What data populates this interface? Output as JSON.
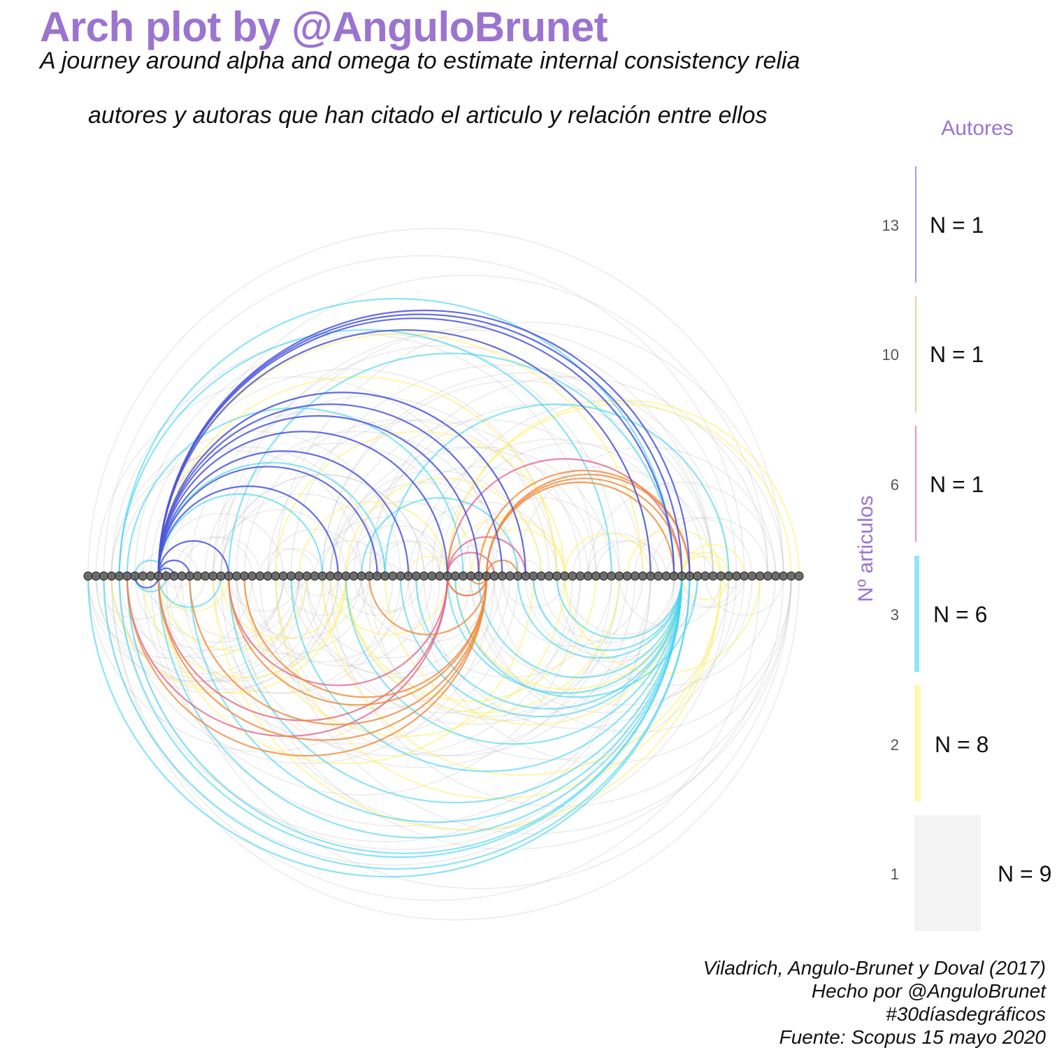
{
  "chart_data": {
    "type": "arc",
    "title": "Arch plot by @AnguloBrunet",
    "subtitle": "A journey around alpha and omega to estimate internal consistency relia",
    "subtitle2": "autores y autoras que han citado el articulo y relación entre ellos",
    "node_count": 92,
    "legend": {
      "title": "Autores",
      "axis_label": "Nº articulos",
      "placement": "right",
      "entries": [
        {
          "level": "13",
          "count_label": "N = 1",
          "color": "#5560e0"
        },
        {
          "level": "10",
          "count_label": "N = 1",
          "color": "#d9b46a"
        },
        {
          "level": "6",
          "count_label": "N = 1",
          "color": "#e07aa0"
        },
        {
          "level": "3",
          "count_label": "N = 6",
          "color": "#50d2f0"
        },
        {
          "level": "2",
          "count_label": "N = 8",
          "color": "#fff07a"
        },
        {
          "level": "1",
          "count_label": "N = 9",
          "color": "#d8d8d8"
        }
      ]
    },
    "series_colors": {
      "n13": "#4a55dd",
      "n6": "#e0608c",
      "n10": "#f08a3c",
      "n3": "#3dd2f2",
      "n2": "#fff06e",
      "n1": "#bbbbbb"
    }
  },
  "caption": {
    "line1": "Viladrich, Angulo-Brunet y Doval (2017)",
    "line2": "Hecho por @AnguloBrunet",
    "line3": "#30díasdegráficos",
    "line4": "Fuente: Scopus 15 mayo 2020"
  }
}
